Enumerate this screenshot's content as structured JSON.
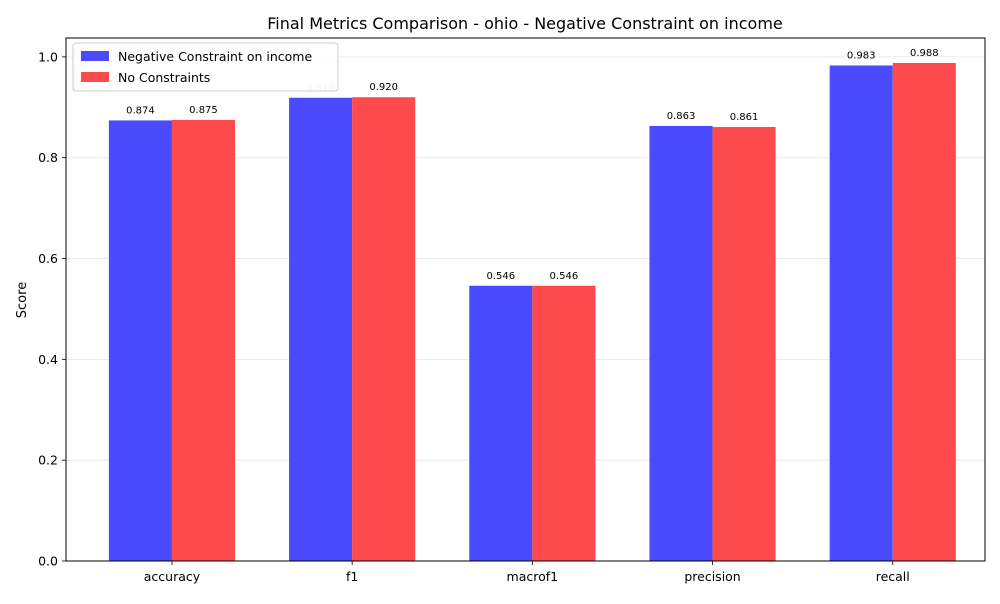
{
  "chart_data": {
    "type": "bar",
    "title": "Final Metrics Comparison - ohio - Negative Constraint on income",
    "xlabel": "",
    "ylabel": "Score",
    "categories": [
      "accuracy",
      "f1",
      "macrof1",
      "precision",
      "recall"
    ],
    "series": [
      {
        "name": "Negative Constraint on income",
        "color": "#4a4aff",
        "values": [
          0.874,
          0.919,
          0.546,
          0.863,
          0.983
        ],
        "labels": [
          "0.874",
          "0.919",
          "0.546",
          "0.863",
          "0.983"
        ]
      },
      {
        "name": "No Constraints",
        "color": "#ff4a4d",
        "values": [
          0.875,
          0.92,
          0.546,
          0.861,
          0.988
        ],
        "labels": [
          "0.875",
          "0.920",
          "0.546",
          "0.861",
          "0.988"
        ]
      }
    ],
    "ylim": [
      0,
      1.0375
    ],
    "yticks": [
      0.0,
      0.2,
      0.4,
      0.6,
      0.8,
      1.0
    ],
    "ytick_labels": [
      "0.0",
      "0.2",
      "0.4",
      "0.6",
      "0.8",
      "1.0"
    ],
    "grid": "y-axis, light",
    "legend_position": "top-left"
  }
}
